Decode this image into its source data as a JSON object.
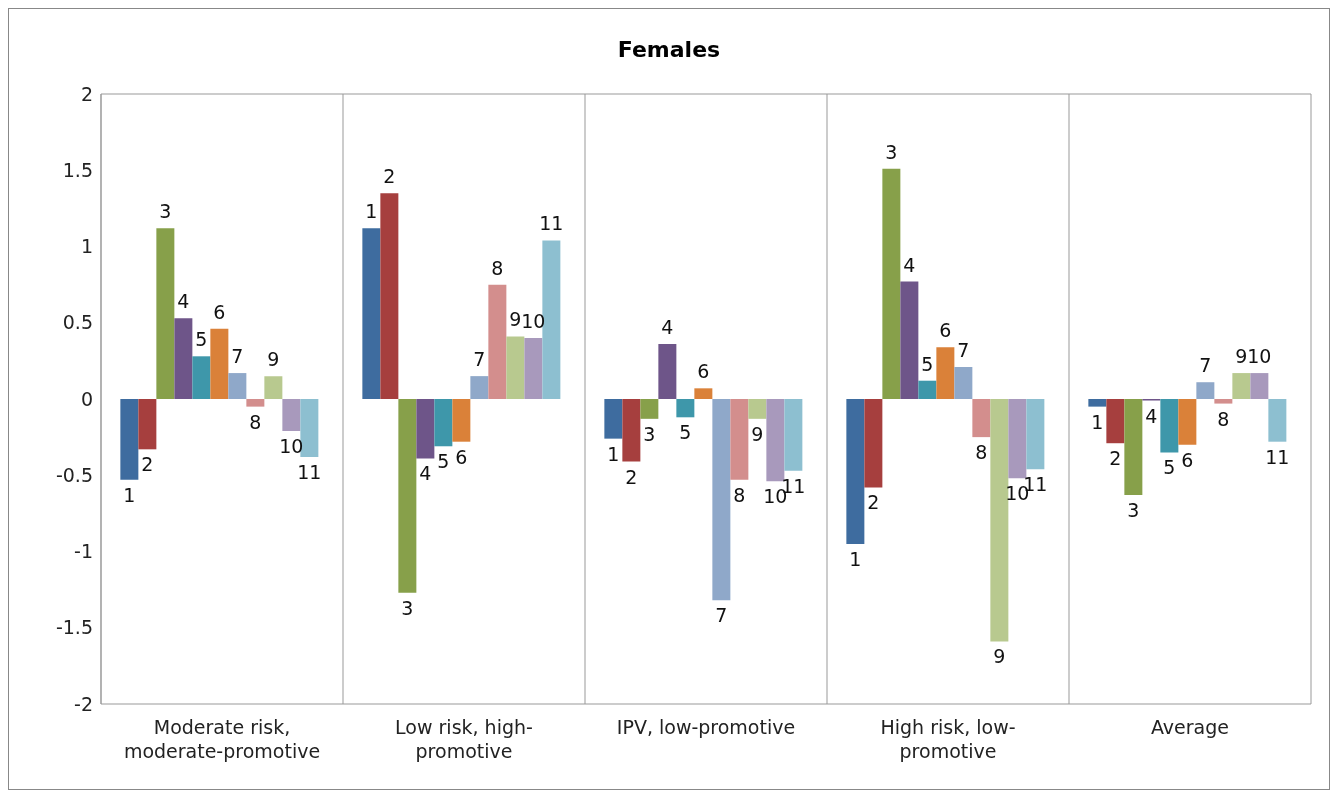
{
  "chart_data": {
    "type": "bar",
    "title": "Females",
    "categories": [
      "Moderate risk, moderate-promotive",
      "Low risk, high-promotive",
      "IPV, low-promotive",
      "High risk, low-promotive",
      "Average"
    ],
    "series": [
      {
        "name": "1",
        "color": "#3e6c9f",
        "values": [
          -0.53,
          1.12,
          -0.26,
          -0.95,
          -0.05
        ]
      },
      {
        "name": "2",
        "color": "#a63f3e",
        "values": [
          -0.33,
          1.35,
          -0.41,
          -0.58,
          -0.29
        ]
      },
      {
        "name": "3",
        "color": "#87a04a",
        "values": [
          1.12,
          -1.27,
          -0.13,
          1.51,
          -0.63
        ]
      },
      {
        "name": "4",
        "color": "#6e5589",
        "values": [
          0.53,
          -0.39,
          0.36,
          0.77,
          -0.01
        ]
      },
      {
        "name": "5",
        "color": "#3e97aa",
        "values": [
          0.28,
          -0.31,
          -0.12,
          0.12,
          -0.35
        ]
      },
      {
        "name": "6",
        "color": "#da8139",
        "values": [
          0.46,
          -0.28,
          0.07,
          0.34,
          -0.3
        ]
      },
      {
        "name": "7",
        "color": "#8fa8c9",
        "values": [
          0.17,
          0.15,
          -1.32,
          0.21,
          0.11
        ]
      },
      {
        "name": "8",
        "color": "#d38e8d",
        "values": [
          -0.05,
          0.75,
          -0.53,
          -0.25,
          -0.03
        ]
      },
      {
        "name": "9",
        "color": "#b8c98f",
        "values": [
          0.15,
          0.41,
          -0.13,
          -1.59,
          0.17
        ]
      },
      {
        "name": "10",
        "color": "#a899bc",
        "values": [
          -0.21,
          0.4,
          -0.54,
          -0.52,
          0.17
        ]
      },
      {
        "name": "11",
        "color": "#8dbfd0",
        "values": [
          -0.38,
          1.04,
          -0.47,
          -0.46,
          -0.28
        ]
      }
    ],
    "ylim": [
      -2,
      2
    ],
    "yticks": [
      -2,
      -1.5,
      -1,
      -0.5,
      0,
      0.5,
      1,
      1.5,
      2
    ],
    "grid": true,
    "legend": false
  }
}
